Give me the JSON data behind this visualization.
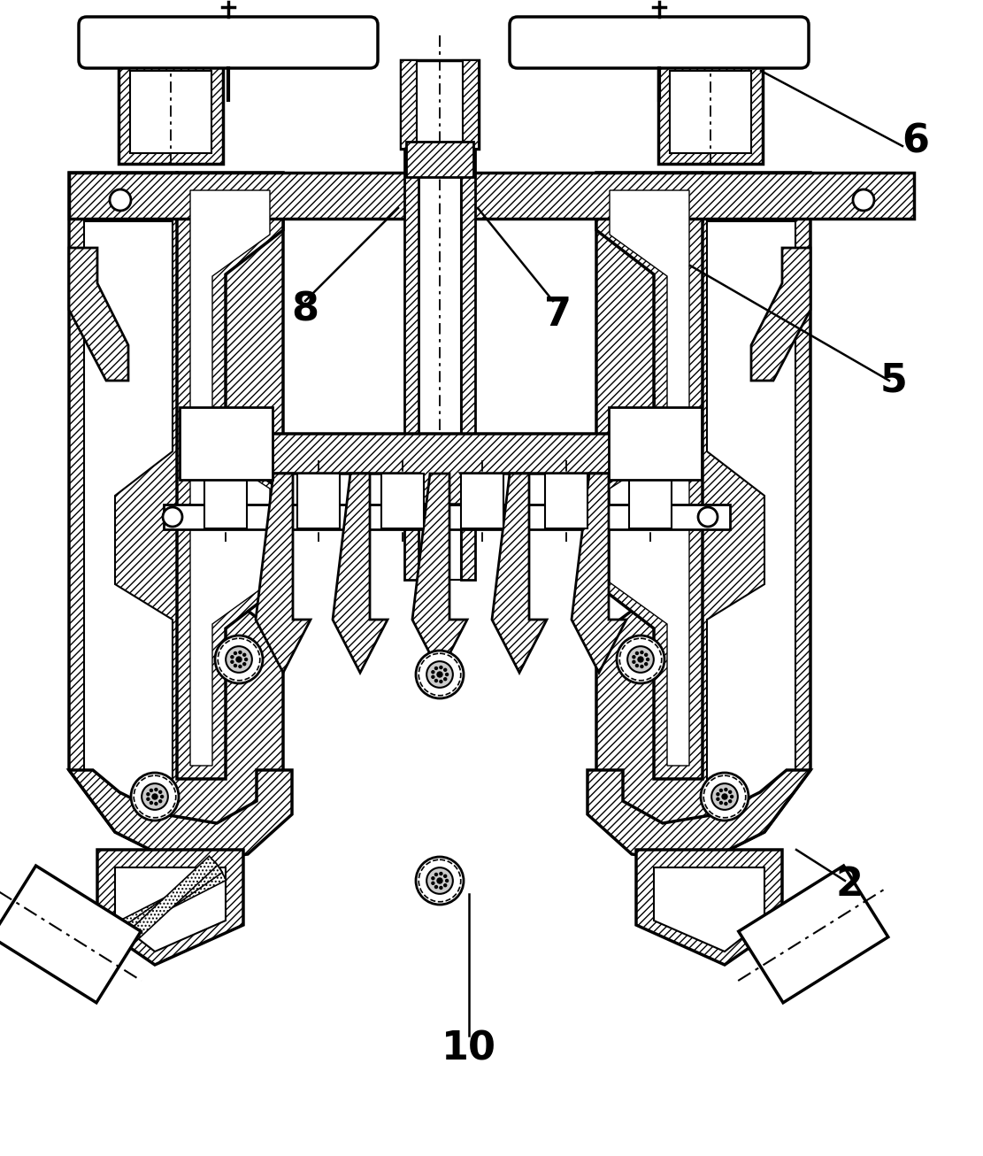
{
  "bg_color": "#ffffff",
  "label_fontsize": 32,
  "label_fontweight": "bold",
  "figsize": [
    11.11,
    13.06
  ],
  "dpi": 100,
  "labels": [
    [
      "2",
      960,
      1000
    ],
    [
      "5",
      1010,
      430
    ],
    [
      "6",
      1035,
      160
    ],
    [
      "7",
      630,
      355
    ],
    [
      "8",
      345,
      350
    ],
    [
      "10",
      530,
      1185
    ]
  ],
  "label_lines": [
    [
      860,
      80,
      1020,
      165
    ],
    [
      780,
      300,
      1005,
      430
    ],
    [
      450,
      235,
      345,
      340
    ],
    [
      540,
      235,
      625,
      340
    ],
    [
      530,
      1010,
      530,
      1170
    ],
    [
      900,
      960,
      955,
      995
    ]
  ]
}
